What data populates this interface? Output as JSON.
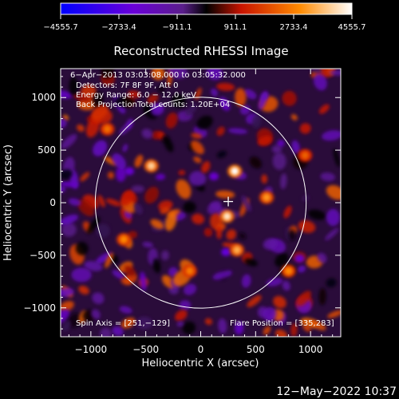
{
  "chart_data": {
    "type": "heatmap",
    "title": "Reconstructed RHESSI Image",
    "xlabel": "Heliocentric X (arcsec)",
    "ylabel": "Heliocentric Y (arcsec)",
    "xlim": [
      -1275,
      1275
    ],
    "ylim": [
      -1275,
      1275
    ],
    "x_ticks": [
      -1000,
      -500,
      0,
      500,
      1000
    ],
    "y_ticks": [
      -1000,
      -500,
      0,
      500,
      1000
    ],
    "x_tick_labels": [
      "−1000",
      "−500",
      "0",
      "500",
      "1000"
    ],
    "y_tick_labels": [
      "−1000",
      "−500",
      "0",
      "500",
      "1000"
    ],
    "colorbar": {
      "min": -4555.7,
      "max": 4555.7,
      "ticks": [
        -4555.7,
        -2733.4,
        -911.1,
        911.1,
        2733.4,
        4555.7
      ],
      "tick_labels": [
        "−4555.7",
        "−2733.4",
        "−911.1",
        "911.1",
        "2733.4",
        "4555.7"
      ],
      "colormap": [
        "#0000ff",
        "#6a00d8",
        "#5a1e8a",
        "#000000",
        "#c81400",
        "#ff8a00",
        "#ffffff"
      ]
    },
    "annotations": [
      "6−Apr−2013 03:03:08.000 to 03:05:32.000",
      "Detectors: 7F 8F 9F, Att 0",
      "Energy Range: 6.0 − 12.0 keV",
      "Back Projection",
      "Total counts: 1.20E+04"
    ],
    "spin_axis_label": "Spin Axis = [251,−129]",
    "flare_position_label": "Flare Position = [335,283]",
    "solar_limb_radius_arcsec": 960,
    "flare_marker": [
      251,
      -129
    ],
    "grid": false,
    "bright_sources": [
      {
        "x": 310,
        "y": 300,
        "value": 4555.7
      },
      {
        "x": -450,
        "y": 350,
        "value": 3900
      },
      {
        "x": 240,
        "y": -130,
        "value": 4200
      },
      {
        "x": 330,
        "y": -450,
        "value": 3400
      },
      {
        "x": -700,
        "y": -350,
        "value": 2900
      },
      {
        "x": 600,
        "y": 50,
        "value": 3100
      },
      {
        "x": -100,
        "y": -650,
        "value": 2700
      },
      {
        "x": 800,
        "y": -650,
        "value": 2900
      },
      {
        "x": -850,
        "y": 700,
        "value": 2500
      },
      {
        "x": 950,
        "y": 450,
        "value": 2300
      }
    ],
    "negative_sources": [
      {
        "x": -650,
        "y": 300,
        "value": -2100
      },
      {
        "x": 120,
        "y": 250,
        "value": -2000
      },
      {
        "x": 230,
        "y": -470,
        "value": -2400
      },
      {
        "x": 900,
        "y": -530,
        "value": -2000
      }
    ]
  },
  "timestamp": "12−May−2022 10:37"
}
